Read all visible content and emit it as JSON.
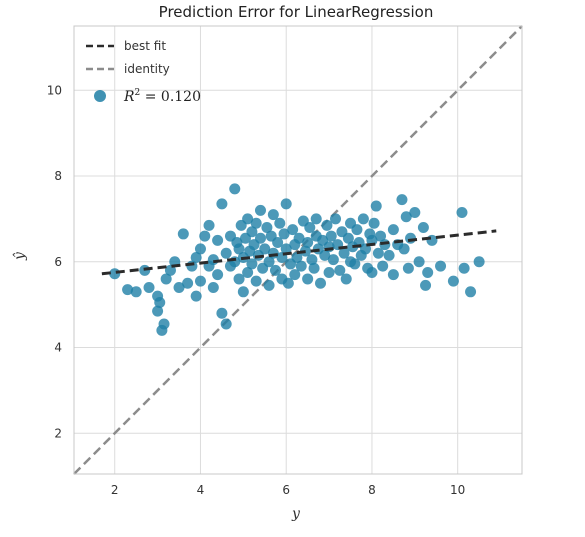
{
  "chart_data": {
    "type": "scatter",
    "title": "Prediction Error for LinearRegression",
    "xlabel": "y",
    "ylabel": "ŷ",
    "xlim": [
      1.05,
      11.5
    ],
    "ylim": [
      1.05,
      11.5
    ],
    "xticks": [
      2,
      4,
      6,
      8,
      10
    ],
    "yticks": [
      2,
      4,
      6,
      8,
      10
    ],
    "grid": true,
    "legend_placement": "top-left",
    "legend": {
      "best_fit": "best fit",
      "identity": "identity",
      "r2_symbol": "R",
      "r2_sup": "2",
      "r2_text": " = 0.120"
    },
    "colors": {
      "points": "#1f7fa6",
      "best_fit": "#2b2b2b",
      "identity": "#8c8c8c",
      "grid": "#dcdcdc"
    },
    "best_fit_line": {
      "x": [
        1.7,
        10.9
      ],
      "y": [
        5.72,
        6.72
      ]
    },
    "identity_line": {
      "x": [
        1.05,
        11.5
      ],
      "y": [
        1.05,
        11.5
      ]
    },
    "points": [
      [
        2.0,
        5.72
      ],
      [
        2.3,
        5.35
      ],
      [
        2.5,
        5.3
      ],
      [
        2.7,
        5.8
      ],
      [
        2.8,
        5.4
      ],
      [
        3.0,
        5.2
      ],
      [
        3.0,
        4.85
      ],
      [
        3.1,
        4.4
      ],
      [
        3.15,
        4.55
      ],
      [
        3.05,
        5.05
      ],
      [
        3.2,
        5.6
      ],
      [
        3.3,
        5.8
      ],
      [
        3.4,
        6.0
      ],
      [
        3.5,
        5.4
      ],
      [
        3.6,
        6.65
      ],
      [
        3.7,
        5.5
      ],
      [
        3.8,
        5.9
      ],
      [
        3.9,
        5.2
      ],
      [
        3.9,
        6.1
      ],
      [
        4.0,
        5.55
      ],
      [
        4.0,
        6.3
      ],
      [
        4.1,
        6.6
      ],
      [
        4.2,
        5.9
      ],
      [
        4.2,
        6.85
      ],
      [
        4.3,
        5.4
      ],
      [
        4.3,
        6.05
      ],
      [
        4.4,
        6.5
      ],
      [
        4.4,
        5.7
      ],
      [
        4.5,
        7.35
      ],
      [
        4.5,
        4.8
      ],
      [
        4.6,
        6.2
      ],
      [
        4.6,
        4.55
      ],
      [
        4.7,
        5.9
      ],
      [
        4.7,
        6.6
      ],
      [
        4.8,
        7.7
      ],
      [
        4.8,
        6.0
      ],
      [
        4.85,
        6.45
      ],
      [
        4.9,
        5.6
      ],
      [
        4.9,
        6.3
      ],
      [
        4.95,
        6.85
      ],
      [
        5.0,
        6.1
      ],
      [
        5.0,
        5.3
      ],
      [
        5.05,
        6.55
      ],
      [
        5.1,
        7.0
      ],
      [
        5.1,
        5.75
      ],
      [
        5.15,
        6.25
      ],
      [
        5.2,
        6.7
      ],
      [
        5.2,
        5.95
      ],
      [
        5.25,
        6.4
      ],
      [
        5.3,
        6.9
      ],
      [
        5.3,
        5.55
      ],
      [
        5.35,
        6.15
      ],
      [
        5.4,
        7.2
      ],
      [
        5.4,
        6.55
      ],
      [
        5.45,
        5.85
      ],
      [
        5.5,
        6.3
      ],
      [
        5.55,
        6.8
      ],
      [
        5.6,
        6.0
      ],
      [
        5.6,
        5.45
      ],
      [
        5.65,
        6.6
      ],
      [
        5.7,
        7.1
      ],
      [
        5.7,
        6.2
      ],
      [
        5.75,
        5.8
      ],
      [
        5.8,
        6.45
      ],
      [
        5.85,
        6.9
      ],
      [
        5.9,
        6.1
      ],
      [
        5.9,
        5.6
      ],
      [
        5.95,
        6.65
      ],
      [
        6.0,
        7.35
      ],
      [
        6.0,
        6.3
      ],
      [
        6.05,
        5.5
      ],
      [
        6.1,
        5.95
      ],
      [
        6.15,
        6.75
      ],
      [
        6.2,
        6.4
      ],
      [
        6.2,
        5.7
      ],
      [
        6.25,
        6.1
      ],
      [
        6.3,
        6.55
      ],
      [
        6.35,
        5.9
      ],
      [
        6.4,
        6.95
      ],
      [
        6.45,
        6.25
      ],
      [
        6.5,
        5.6
      ],
      [
        6.5,
        6.45
      ],
      [
        6.55,
        6.8
      ],
      [
        6.6,
        6.05
      ],
      [
        6.65,
        5.85
      ],
      [
        6.7,
        6.6
      ],
      [
        6.7,
        7.0
      ],
      [
        6.75,
        6.3
      ],
      [
        6.8,
        5.5
      ],
      [
        6.85,
        6.5
      ],
      [
        6.9,
        6.15
      ],
      [
        6.95,
        6.85
      ],
      [
        7.0,
        6.35
      ],
      [
        7.0,
        5.75
      ],
      [
        7.05,
        6.6
      ],
      [
        7.1,
        6.05
      ],
      [
        7.15,
        7.0
      ],
      [
        7.2,
        6.4
      ],
      [
        7.25,
        5.8
      ],
      [
        7.3,
        6.7
      ],
      [
        7.35,
        6.2
      ],
      [
        7.4,
        5.6
      ],
      [
        7.45,
        6.55
      ],
      [
        7.5,
        6.9
      ],
      [
        7.5,
        6.0
      ],
      [
        7.55,
        6.35
      ],
      [
        7.6,
        5.95
      ],
      [
        7.65,
        6.75
      ],
      [
        7.7,
        6.45
      ],
      [
        7.75,
        6.15
      ],
      [
        7.8,
        7.0
      ],
      [
        7.85,
        6.3
      ],
      [
        7.9,
        5.85
      ],
      [
        7.95,
        6.65
      ],
      [
        8.0,
        6.5
      ],
      [
        8.0,
        5.75
      ],
      [
        8.05,
        6.9
      ],
      [
        8.1,
        7.3
      ],
      [
        8.15,
        6.2
      ],
      [
        8.2,
        6.6
      ],
      [
        8.25,
        5.9
      ],
      [
        8.3,
        6.4
      ],
      [
        8.4,
        6.15
      ],
      [
        8.5,
        6.75
      ],
      [
        8.5,
        5.7
      ],
      [
        8.6,
        6.4
      ],
      [
        8.7,
        7.45
      ],
      [
        8.75,
        6.3
      ],
      [
        8.8,
        7.05
      ],
      [
        8.85,
        5.85
      ],
      [
        8.9,
        6.55
      ],
      [
        9.0,
        7.15
      ],
      [
        9.1,
        6.0
      ],
      [
        9.2,
        6.8
      ],
      [
        9.25,
        5.45
      ],
      [
        9.3,
        5.75
      ],
      [
        9.4,
        6.5
      ],
      [
        9.6,
        5.9
      ],
      [
        9.9,
        5.55
      ],
      [
        10.1,
        7.15
      ],
      [
        10.15,
        5.85
      ],
      [
        10.3,
        5.3
      ],
      [
        10.5,
        6.0
      ]
    ]
  }
}
